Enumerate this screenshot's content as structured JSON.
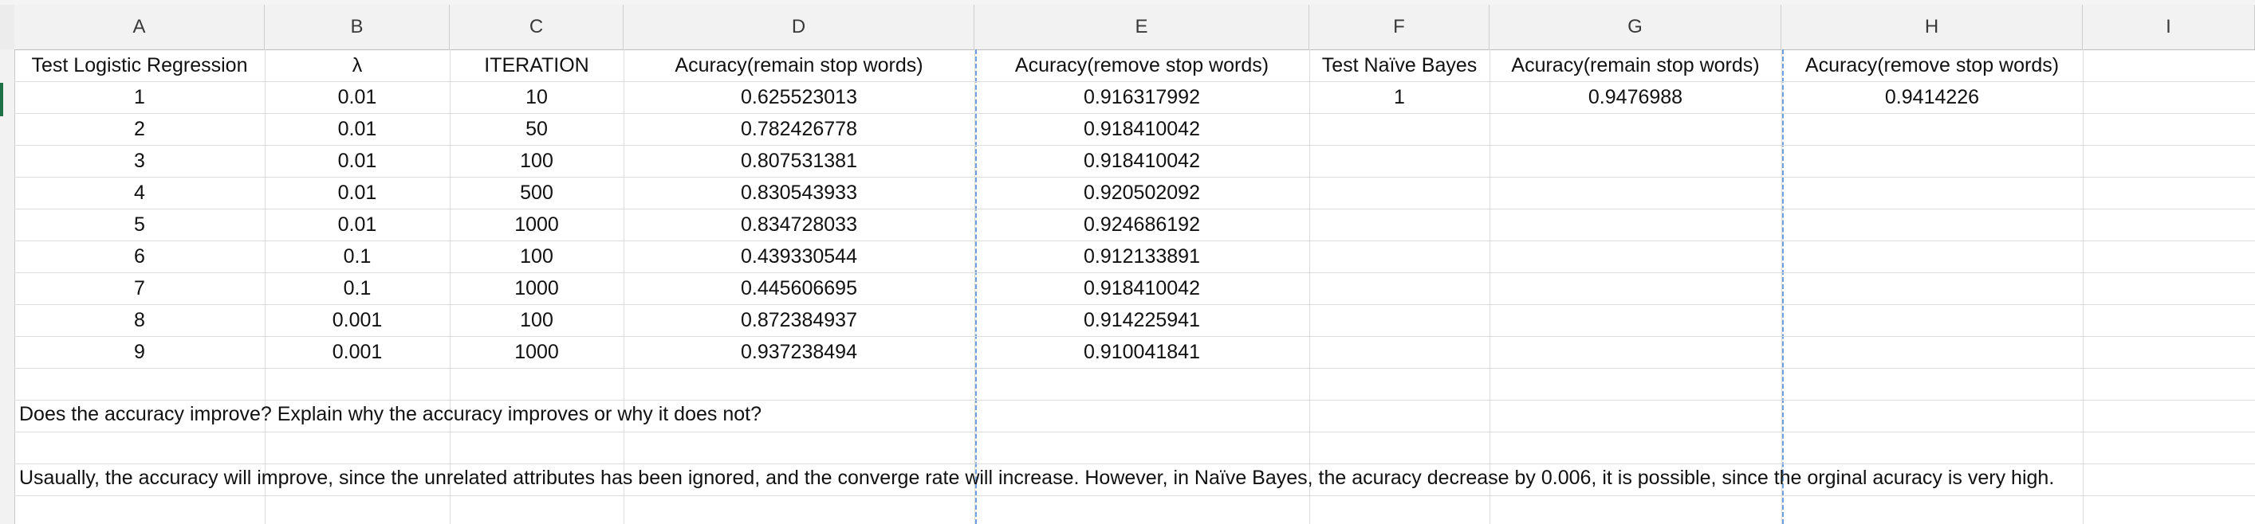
{
  "column_headers": [
    "A",
    "B",
    "C",
    "D",
    "E",
    "F",
    "G",
    "H",
    "I"
  ],
  "lr_table": {
    "headers": [
      "Test Logistic Regression",
      "λ",
      "ITERATION",
      "Acuracy(remain stop words)",
      "Acuracy(remove stop words)"
    ],
    "rows": [
      [
        "1",
        "0.01",
        "10",
        "0.625523013",
        "0.916317992"
      ],
      [
        "2",
        "0.01",
        "50",
        "0.782426778",
        "0.918410042"
      ],
      [
        "3",
        "0.01",
        "100",
        "0.807531381",
        "0.918410042"
      ],
      [
        "4",
        "0.01",
        "500",
        "0.830543933",
        "0.920502092"
      ],
      [
        "5",
        "0.01",
        "1000",
        "0.834728033",
        "0.924686192"
      ],
      [
        "6",
        "0.1",
        "100",
        "0.439330544",
        "0.912133891"
      ],
      [
        "7",
        "0.1",
        "1000",
        "0.445606695",
        "0.918410042"
      ],
      [
        "8",
        "0.001",
        "100",
        "0.872384937",
        "0.914225941"
      ],
      [
        "9",
        "0.001",
        "1000",
        "0.937238494",
        "0.910041841"
      ]
    ]
  },
  "nb_table": {
    "headers": [
      "Test Naïve Bayes",
      "Acuracy(remain stop words)",
      "Acuracy(remove stop words)"
    ],
    "rows": [
      [
        "1",
        "0.9476988",
        "0.9414226"
      ]
    ]
  },
  "question": "Does the accuracy improve? Explain why the accuracy improves or why it does not?",
  "answer": "Usaually, the accuracy will improve, since the unrelated attributes has been ignored, and the converge rate will increase. However, in Naïve Bayes, the acuracy decrease by 0.006, it is possible, since the orginal acuracy is very high.",
  "colors": {
    "page_break": "#6ea0dd",
    "gridline": "#dcdcdc",
    "header_bg": "#f2f2f2",
    "selection": "#1e7145"
  }
}
